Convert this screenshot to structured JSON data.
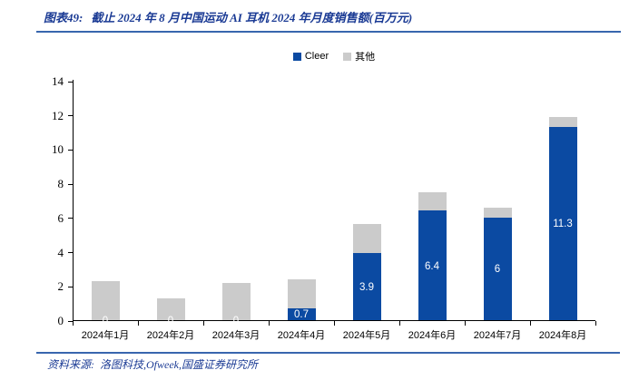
{
  "header": {
    "title_prefix": "图表49:",
    "title": "截止 2024 年 8 月中国运动 AI 耳机 2024 年月度销售额(百万元)"
  },
  "colors": {
    "cleer_blue": "#0b4aa2",
    "other_gray": "#cbcbcb",
    "title_navy": "#1a3a94",
    "rule_blue": "#3866ae",
    "axis_black": "#000000",
    "label_white": "#ffffff"
  },
  "legend": [
    {
      "label": "Cleer",
      "color": "#0b4aa2"
    },
    {
      "label": "其他",
      "color": "#cbcbcb"
    }
  ],
  "chart_data": {
    "type": "bar",
    "stacked": true,
    "title": "截止 2024 年 8 月中国运动 AI 耳机 2024 年月度销售额(百万元)",
    "xlabel": "",
    "ylabel": "",
    "categories": [
      "2024年1月",
      "2024年2月",
      "2024年3月",
      "2024年4月",
      "2024年5月",
      "2024年6月",
      "2024年7月",
      "2024年8月"
    ],
    "series": [
      {
        "name": "Cleer",
        "color": "#0b4aa2",
        "values": [
          0,
          0,
          0,
          0.7,
          3.9,
          6.4,
          6,
          11.3
        ],
        "data_labels": [
          "0",
          "0",
          "0",
          "0.7",
          "3.9",
          "6.4",
          "6",
          "11.3"
        ]
      },
      {
        "name": "其他",
        "color": "#cbcbcb",
        "values": [
          2.3,
          1.3,
          2.2,
          1.7,
          1.7,
          1.1,
          0.6,
          0.6
        ],
        "data_labels": null
      }
    ],
    "ylim": [
      0,
      14
    ],
    "ytick_step": 2,
    "yticks": [
      0,
      2,
      4,
      6,
      8,
      10,
      12,
      14
    ],
    "grid": false,
    "legend_position": "top-center"
  },
  "footer": {
    "source_label": "资料来源:",
    "source": "洛图科技,Ofweek,国盛证券研究所"
  }
}
